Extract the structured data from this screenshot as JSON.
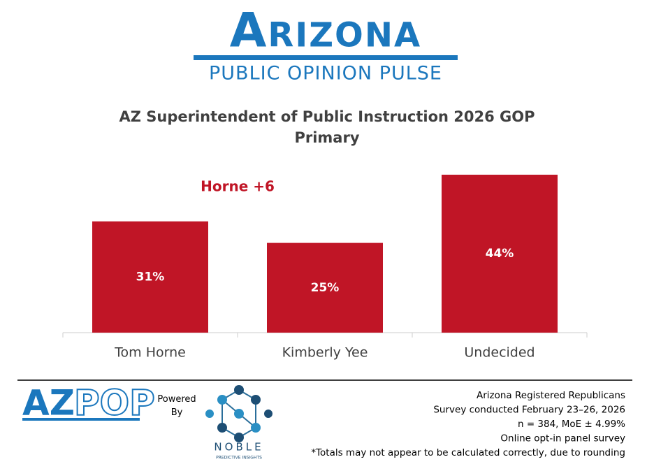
{
  "header": {
    "brand": "Arizona",
    "subtitle": "PUBLIC OPINION PULSE"
  },
  "chart_data": {
    "type": "bar",
    "title": "AZ Superintendent of Public Instruction 2026 GOP Primary",
    "annotation": "Horne +6",
    "categories": [
      "Tom Horne",
      "Kimberly Yee",
      "Undecided"
    ],
    "values": [
      31,
      25,
      44
    ],
    "value_labels": [
      "31%",
      "25%",
      "44%"
    ],
    "color": "#c01526"
  },
  "footer": {
    "logo_left": "AZ",
    "logo_right": "POP",
    "powered_by": "Powered By",
    "noble": "NOBLE",
    "noble_tagline": "PREDICTIVE INSIGHTS",
    "notes": [
      "Arizona Registered Republicans",
      "Survey conducted February 23–26, 2026",
      "n = 384, MoE ± 4.99%",
      "Online opt-in panel survey",
      "*Totals may not appear to be calculated correctly, due to rounding"
    ]
  }
}
